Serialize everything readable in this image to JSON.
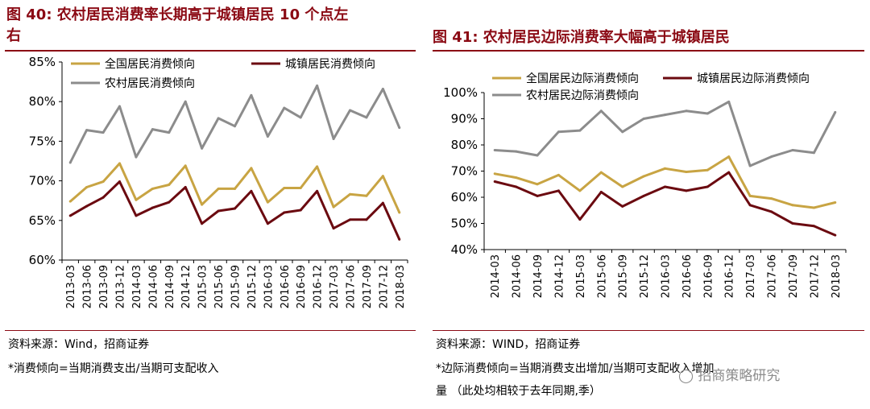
{
  "left": {
    "title_line1": "图 40:   农村居民消费率长期高于城镇居民 10 个点左",
    "title_line2": "右",
    "source": "资料来源：Wind，招商证券",
    "note": "*消费倾向=当期消费支出/当期可支配收入"
  },
  "right": {
    "title": "图 41:   农村居民边际消费率大幅高于城镇居民",
    "source": "资料来源：WIND，招商证券",
    "note_line1": "*边际消费倾向=当期消费支出增加/当期可支配收入增加",
    "note_line2": "量  （此处均相较于去年同期,季）"
  },
  "watermark": "招商策略研究",
  "colors": {
    "gold": "#c8a443",
    "maroon": "#6b0a10",
    "gray": "#8c8c8c",
    "title_red": "#8b0a14"
  },
  "chart_data": [
    {
      "type": "line",
      "title": "农村居民消费率长期高于城镇居民 10 个点左右",
      "x": [
        "2013-03",
        "2013-06",
        "2013-09",
        "2013-12",
        "2014-03",
        "2014-06",
        "2014-09",
        "2014-12",
        "2015-03",
        "2015-06",
        "2015-09",
        "2015-12",
        "2016-03",
        "2016-06",
        "2016-09",
        "2016-12",
        "2017-03",
        "2017-06",
        "2017-09",
        "2017-12",
        "2018-03"
      ],
      "yticks": [
        "60%",
        "65%",
        "70%",
        "75%",
        "80%",
        "85%"
      ],
      "ylim": [
        60,
        85
      ],
      "series": [
        {
          "name": "全国居民消费倾向",
          "color": "gold",
          "values": [
            67.4,
            69.2,
            69.9,
            72.2,
            67.6,
            69.0,
            69.5,
            71.9,
            67.0,
            69.0,
            69.0,
            71.6,
            67.3,
            69.1,
            69.1,
            71.8,
            66.7,
            68.3,
            68.1,
            70.6,
            66.0
          ]
        },
        {
          "name": "城镇居民消费倾向",
          "color": "maroon",
          "values": [
            65.6,
            66.8,
            67.9,
            69.9,
            65.6,
            66.6,
            67.3,
            69.2,
            64.6,
            66.2,
            66.5,
            68.7,
            64.6,
            66.0,
            66.3,
            68.7,
            64.0,
            65.1,
            65.1,
            67.2,
            62.6
          ]
        },
        {
          "name": "农村居民消费倾向",
          "color": "gray",
          "values": [
            72.3,
            76.4,
            76.1,
            79.4,
            73.0,
            76.5,
            76.1,
            80.0,
            74.1,
            77.9,
            76.9,
            80.8,
            75.6,
            79.2,
            78.0,
            82.0,
            75.3,
            78.9,
            78.0,
            81.6,
            76.7
          ]
        }
      ]
    },
    {
      "type": "line",
      "title": "农村居民边际消费率大幅高于城镇居民",
      "x": [
        "2014-03",
        "2014-06",
        "2014-09",
        "2014-12",
        "2015-03",
        "2015-06",
        "2015-09",
        "2015-12",
        "2016-03",
        "2016-06",
        "2016-09",
        "2016-12",
        "2017-03",
        "2017-06",
        "2017-09",
        "2017-12",
        "2018-03"
      ],
      "yticks": [
        "40%",
        "50%",
        "60%",
        "70%",
        "80%",
        "90%",
        "100%"
      ],
      "ylim": [
        40,
        100
      ],
      "series": [
        {
          "name": "全国居民边际消费倾向",
          "color": "gold",
          "values": [
            69.0,
            67.5,
            65.0,
            68.5,
            62.5,
            69.5,
            64.0,
            68.0,
            71.0,
            69.7,
            70.4,
            75.5,
            60.5,
            59.5,
            57.0,
            56.0,
            58.0
          ]
        },
        {
          "name": "城镇居民边际消费倾向",
          "color": "maroon",
          "values": [
            66.0,
            64.0,
            60.5,
            62.5,
            51.5,
            62.0,
            56.5,
            60.5,
            64.0,
            62.5,
            64.0,
            69.5,
            57.0,
            54.5,
            50.0,
            49.0,
            45.5
          ]
        },
        {
          "name": "农村居民边际消费倾向",
          "color": "gray",
          "values": [
            78.0,
            77.5,
            76.0,
            85.0,
            85.5,
            93.0,
            85.0,
            90.0,
            91.5,
            93.0,
            92.0,
            96.5,
            72.0,
            75.5,
            78.0,
            77.0,
            92.5
          ]
        }
      ]
    }
  ]
}
